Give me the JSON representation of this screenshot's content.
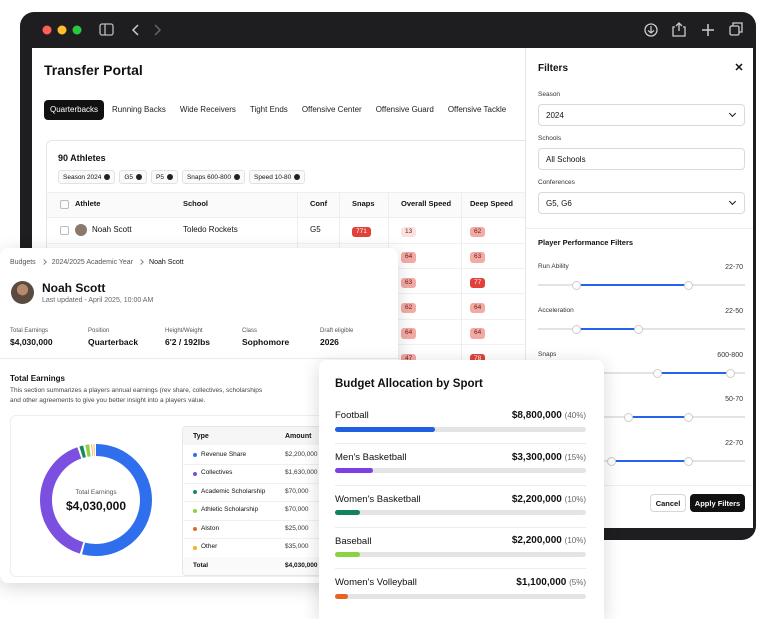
{
  "header": {
    "title": "Transfer Portal"
  },
  "tabs": [
    "Quarterbacks",
    "Running Backs",
    "Wide Receivers",
    "Tight Ends",
    "Offensive Center",
    "Offensive Guard",
    "Offensive Tackle"
  ],
  "athletes": {
    "count_label": "90 Athletes",
    "chips": [
      "Season 2024",
      "G5",
      "P5",
      "Snaps 600-800",
      "Speed 10-80"
    ],
    "columns": [
      "Athlete",
      "School",
      "Conf",
      "Snaps",
      "Overall Speed",
      "Deep Speed"
    ],
    "rows": [
      {
        "athlete": "Noah Scott",
        "school": "Toledo Rockets",
        "conf": "G5",
        "snaps": 771,
        "overall_speed": 13,
        "deep_speed": 62
      },
      {
        "overall_speed": 64,
        "deep_speed": 63
      },
      {
        "overall_speed": 63,
        "deep_speed": 77
      },
      {
        "overall_speed": 62,
        "deep_speed": 64
      },
      {
        "overall_speed": 64,
        "deep_speed": 64
      },
      {
        "overall_speed": 47,
        "deep_speed": 78
      }
    ]
  },
  "filters": {
    "title": "Filters",
    "fields": [
      {
        "label": "Season",
        "value": "2024"
      },
      {
        "label": "Schools",
        "value": "All Schools"
      },
      {
        "label": "Conferences",
        "value": "G5, G6"
      }
    ],
    "performance_title": "Player Performance Filters",
    "sliders": [
      {
        "label": "Run Ability",
        "range": "22-70"
      },
      {
        "label": "Acceleration",
        "range": "22-50"
      },
      {
        "label": "Snaps",
        "range": "600-800"
      },
      {
        "range": "50-70"
      },
      {
        "range": "22-70"
      }
    ],
    "buttons": [
      "Cancel",
      "Apply Filters"
    ]
  },
  "budget": {
    "breadcrumb": [
      "Budgets",
      "2024/2025 Academic Year",
      "Noah Scott"
    ],
    "name": "Noah Scott",
    "updated": "Last updated - April  2025, 10:00 AM",
    "stats": [
      {
        "label": "Total Earnings",
        "value": "$4,030,000"
      },
      {
        "label": "Position",
        "value": "Quarterback"
      },
      {
        "label": "Height/Weight",
        "value": "6'2 / 192lbs"
      },
      {
        "label": "Class",
        "value": "Sophomore"
      },
      {
        "label": "Draft eligible",
        "value": "2026"
      }
    ],
    "section_title": "Total Earnings",
    "section_text": "This section summarizes a players annual earnings (rev share, collectives, scholarships and other agreements to give you better insight into a players value.",
    "donut_label": "Total Earnings",
    "donut_value": "$4,030,000",
    "table": {
      "columns": [
        "Type",
        "Amount"
      ],
      "rows": [
        {
          "type": "Revenue Share",
          "color": "#2f6fed",
          "amount": {
            "value": 2200000,
            "label": "$2,200,000"
          }
        },
        {
          "type": "Collectives",
          "color": "#7b4fe0",
          "amount": {
            "value": 1630000,
            "label": "$1,630,000"
          }
        },
        {
          "type": "Academic Scholarship",
          "color": "#16895f",
          "amount": {
            "value": 70000,
            "label": "$70,000"
          }
        },
        {
          "type": "Athletic Scholarship",
          "color": "#8fd140",
          "amount": {
            "value": 70000,
            "label": "$70,000"
          }
        },
        {
          "type": "Alston",
          "color": "#e8672a",
          "amount": {
            "value": 25000,
            "label": "$25,000"
          }
        },
        {
          "type": "Other",
          "color": "#f2b31b",
          "amount": {
            "value": 35000,
            "label": "$35,000"
          }
        }
      ],
      "total": {
        "type": "Total",
        "amount": "$4,030,000"
      }
    }
  },
  "allocation": {
    "title": "Budget Allocation by Sport",
    "sports": [
      {
        "name": "Football",
        "amount": "$8,800,000",
        "share": 40,
        "share_label": "(40%)",
        "color": "#1f5fe0"
      },
      {
        "name": "Men's Basketball",
        "amount": "$3,300,000",
        "share": 15,
        "share_label": "(15%)",
        "color": "#7b3fe4"
      },
      {
        "name": "Women's Basketball",
        "amount": "$2,200,000",
        "share": 10,
        "share_label": "(10%)",
        "color": "#12835a"
      },
      {
        "name": "Baseball",
        "amount": "$2,200,000",
        "share": 10,
        "share_label": "(10%)",
        "color": "#8bd346"
      },
      {
        "name": "Women's Volleyball",
        "amount": "$1,100,000",
        "share": 5,
        "share_label": "(5%)",
        "color": "#e5651f"
      }
    ]
  }
}
